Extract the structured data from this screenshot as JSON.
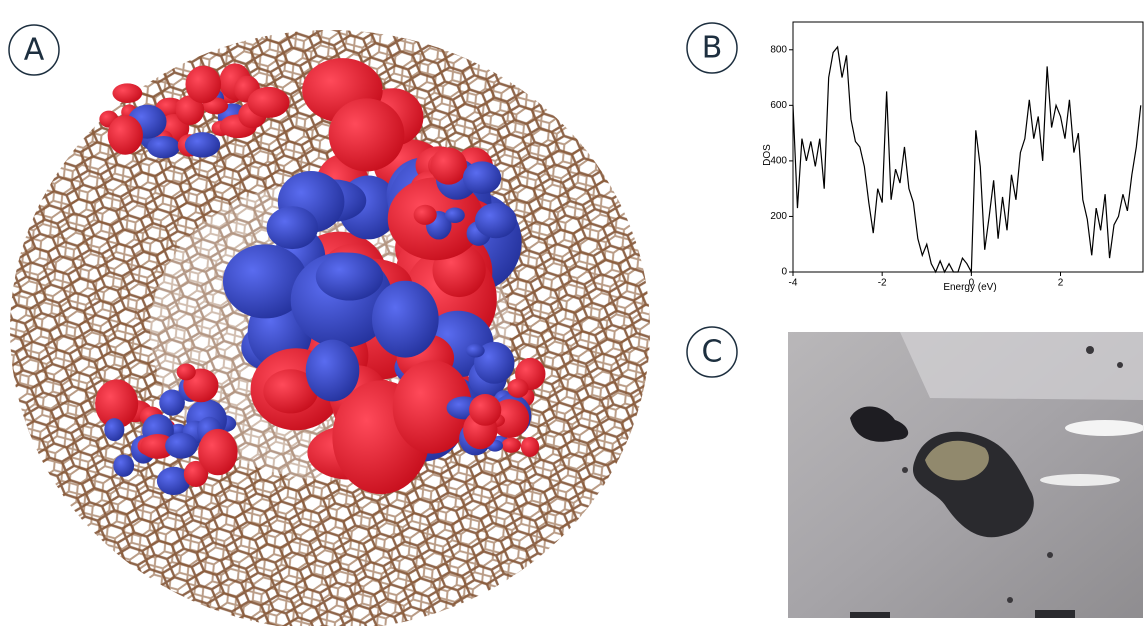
{
  "panels": [
    "A",
    "B",
    "C"
  ],
  "chart_data": {
    "type": "line",
    "x_label": "Energy (eV)",
    "y_label": "DOS",
    "x": [
      -4.0,
      -3.9,
      -3.8,
      -3.7,
      -3.6,
      -3.5,
      -3.4,
      -3.3,
      -3.2,
      -3.1,
      -3.0,
      -2.9,
      -2.8,
      -2.7,
      -2.6,
      -2.5,
      -2.4,
      -2.3,
      -2.2,
      -2.1,
      -2.0,
      -1.9,
      -1.8,
      -1.7,
      -1.6,
      -1.5,
      -1.4,
      -1.3,
      -1.2,
      -1.1,
      -1.0,
      -0.9,
      -0.8,
      -0.7,
      -0.6,
      -0.5,
      -0.4,
      -0.3,
      -0.2,
      -0.1,
      0.0,
      0.1,
      0.2,
      0.3,
      0.4,
      0.5,
      0.6,
      0.7,
      0.8,
      0.9,
      1.0,
      1.1,
      1.2,
      1.3,
      1.4,
      1.5,
      1.6,
      1.7,
      1.8,
      1.9,
      2.0,
      2.1,
      2.2,
      2.3,
      2.4,
      2.5,
      2.6,
      2.7,
      2.8,
      2.9,
      3.0,
      3.1,
      3.2,
      3.3,
      3.4,
      3.5,
      3.6,
      3.7,
      3.8
    ],
    "values": [
      600,
      230,
      480,
      400,
      470,
      380,
      480,
      300,
      700,
      790,
      810,
      700,
      780,
      550,
      470,
      450,
      380,
      250,
      140,
      300,
      250,
      650,
      260,
      370,
      320,
      450,
      300,
      250,
      120,
      60,
      100,
      30,
      0,
      40,
      0,
      30,
      0,
      0,
      50,
      30,
      0,
      510,
      380,
      80,
      200,
      330,
      120,
      270,
      150,
      350,
      260,
      430,
      480,
      620,
      480,
      560,
      400,
      740,
      520,
      600,
      560,
      480,
      620,
      430,
      500,
      260,
      190,
      60,
      230,
      150,
      280,
      50,
      170,
      200,
      280,
      220,
      350,
      450,
      600
    ],
    "color": "#000000",
    "xlim": [
      -4,
      3.85
    ],
    "ylim": [
      0,
      900
    ],
    "xticks": [
      -4,
      -2,
      0,
      2
    ],
    "yticks": [
      0,
      200,
      400,
      600,
      800
    ]
  }
}
